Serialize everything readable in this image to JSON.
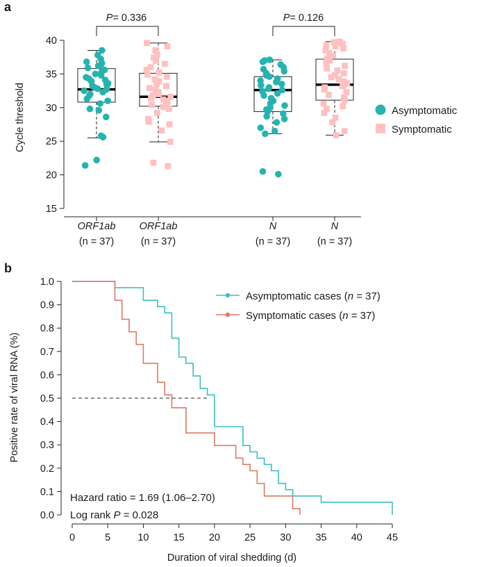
{
  "panels": {
    "a": {
      "label": "a"
    },
    "b": {
      "label": "b"
    }
  },
  "colors": {
    "asymptomatic": "#26b3b0",
    "symptomatic": "#ffc0c0",
    "km_asymptomatic": "#3bbfc0",
    "km_symptomatic": "#e07768"
  },
  "chart_data": [
    {
      "type": "box",
      "ylabel": "Cycle threshold",
      "ylim": [
        15,
        42
      ],
      "yticks": [
        15,
        20,
        25,
        30,
        35,
        40
      ],
      "legend_position": "right",
      "series": [
        {
          "name": "Asymptomatic",
          "marker": "circle"
        },
        {
          "name": "Symptomatic",
          "marker": "square"
        }
      ],
      "groups": [
        {
          "gene": "ORF1ab",
          "n_label": "(n = 37)",
          "series": "Asymptomatic",
          "box": {
            "min": 25.5,
            "q1": 30.8,
            "median": 32.7,
            "q3": 35.8,
            "max": 38.5
          },
          "points": [
            21.4,
            22.2,
            25.6,
            25.8,
            28.6,
            29.6,
            29.8,
            30.6,
            31.0,
            31.3,
            31.8,
            32.0,
            32.3,
            32.5,
            32.7,
            32.8,
            33.0,
            33.2,
            33.3,
            33.5,
            33.6,
            33.9,
            34.1,
            34.3,
            34.5,
            34.8,
            35.0,
            35.3,
            35.6,
            35.9,
            36.2,
            36.4,
            36.6,
            36.8,
            37.2,
            37.8,
            38.5
          ]
        },
        {
          "gene": "ORF1ab",
          "n_label": "(n = 37)",
          "series": "Symptomatic",
          "box": {
            "min": 24.9,
            "q1": 30.2,
            "median": 31.6,
            "q3": 35.1,
            "max": 39.6
          },
          "points": [
            21.3,
            21.8,
            24.9,
            26.6,
            27.5,
            27.9,
            28.3,
            29.2,
            29.8,
            30.1,
            30.4,
            30.7,
            30.9,
            31.2,
            31.4,
            31.6,
            31.8,
            32.0,
            32.3,
            32.6,
            32.9,
            33.2,
            33.5,
            33.9,
            34.2,
            34.6,
            34.9,
            35.2,
            35.6,
            36.0,
            36.5,
            36.9,
            37.4,
            37.9,
            38.5,
            39.1,
            39.6
          ]
        },
        {
          "gene": "N",
          "n_label": "(n = 37)",
          "series": "Asymptomatic",
          "box": {
            "min": 26.1,
            "q1": 29.4,
            "median": 32.6,
            "q3": 34.6,
            "max": 37.1
          },
          "points": [
            20.1,
            20.5,
            26.1,
            26.5,
            27.0,
            27.8,
            28.3,
            28.7,
            29.1,
            29.4,
            29.7,
            30.0,
            30.3,
            30.6,
            31.0,
            31.4,
            31.8,
            32.1,
            32.4,
            32.6,
            32.8,
            33.0,
            33.3,
            33.5,
            33.8,
            34.0,
            34.3,
            34.6,
            34.8,
            35.1,
            35.4,
            35.7,
            36.0,
            36.4,
            36.8,
            37.0,
            37.1
          ]
        },
        {
          "gene": "N",
          "n_label": "(n = 37)",
          "series": "Symptomatic",
          "box": {
            "min": 25.9,
            "q1": 31.1,
            "median": 33.4,
            "q3": 37.2,
            "max": 39.8
          },
          "points": [
            25.9,
            26.5,
            27.8,
            28.5,
            29.2,
            29.8,
            30.2,
            30.6,
            31.1,
            31.5,
            31.9,
            32.3,
            32.7,
            33.0,
            33.2,
            33.4,
            33.6,
            33.9,
            34.2,
            34.5,
            34.8,
            35.1,
            35.5,
            35.8,
            36.2,
            36.6,
            37.0,
            37.3,
            37.7,
            38.1,
            38.5,
            38.8,
            39.1,
            39.3,
            39.5,
            39.7,
            39.8
          ]
        }
      ],
      "comparisons": [
        {
          "label": "P = 0.336",
          "p_letter": "P",
          "p_value": "= 0.336",
          "between": [
            0,
            1
          ]
        },
        {
          "label": "P = 0.126",
          "p_letter": "P",
          "p_value": "= 0.126",
          "between": [
            2,
            3
          ]
        }
      ]
    },
    {
      "type": "line",
      "subtype": "kaplan-meier step",
      "xlabel": "Duration of viral shedding (d)",
      "ylabel": "Positive rate of viral RNA (%)",
      "xlim": [
        0,
        45
      ],
      "ylim": [
        0,
        1.0
      ],
      "xticks": [
        0,
        5,
        10,
        15,
        20,
        25,
        30,
        35,
        40,
        45
      ],
      "yticks": [
        "0.0",
        "0.1",
        "0.2",
        "0.3",
        "0.4",
        "0.5",
        "0.6",
        "0.7",
        "0.8",
        "0.9",
        "1.0"
      ],
      "median_reference": {
        "y": 0.5,
        "x_end": 19,
        "style": "dashed"
      },
      "legend_position": "top-right",
      "series": [
        {
          "name": "Asymptomatic cases (n = 37)",
          "name_prefix": "Asymptomatic cases (",
          "name_n": "n",
          "name_suffix": " = 37)",
          "x": [
            0,
            6,
            10,
            12,
            13,
            14,
            15,
            16,
            17,
            18,
            19,
            20,
            24,
            25,
            26,
            27,
            28,
            29,
            30,
            31,
            35,
            45
          ],
          "y": [
            1.0,
            0.973,
            0.919,
            0.892,
            0.865,
            0.757,
            0.676,
            0.649,
            0.595,
            0.541,
            0.514,
            0.378,
            0.297,
            0.27,
            0.243,
            0.216,
            0.189,
            0.135,
            0.108,
            0.081,
            0.054,
            0.027
          ],
          "end": 45,
          "end_y": 0.0
        },
        {
          "name": "Symptomatic cases (n = 37)",
          "name_prefix": "Symptomatic cases (",
          "name_n": "n",
          "name_suffix": " = 37)",
          "x": [
            0,
            6,
            7,
            8,
            9,
            10,
            12,
            13,
            14,
            16,
            20,
            23,
            24,
            25,
            26,
            27,
            31,
            32
          ],
          "y": [
            1.0,
            0.919,
            0.838,
            0.784,
            0.73,
            0.649,
            0.568,
            0.514,
            0.459,
            0.351,
            0.297,
            0.243,
            0.216,
            0.189,
            0.135,
            0.081,
            0.027,
            0.0
          ],
          "end": 32,
          "end_y": 0.0
        }
      ],
      "annotations": [
        {
          "text": "Hazard ratio = 1.69 (1.06–2.70)"
        },
        {
          "text": "Log rank P = 0.028",
          "prefix": "Log rank ",
          "p_letter": "P",
          "suffix": " = 0.028"
        }
      ]
    }
  ]
}
